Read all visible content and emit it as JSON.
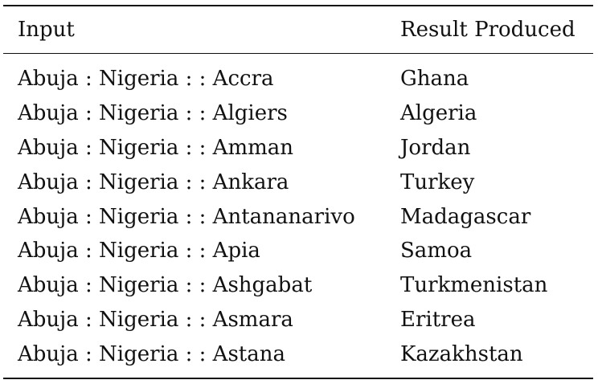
{
  "table": {
    "headers": {
      "input": "Input",
      "result": "Result Produced"
    },
    "rows": [
      {
        "input": "Abuja : Nigeria : : Accra",
        "result": "Ghana"
      },
      {
        "input": "Abuja : Nigeria : : Algiers",
        "result": "Algeria"
      },
      {
        "input": "Abuja : Nigeria : : Amman",
        "result": "Jordan"
      },
      {
        "input": "Abuja : Nigeria : : Ankara",
        "result": "Turkey"
      },
      {
        "input": "Abuja : Nigeria : : Antananarivo",
        "result": "Madagascar"
      },
      {
        "input": "Abuja : Nigeria : : Apia",
        "result": "Samoa"
      },
      {
        "input": "Abuja : Nigeria : : Ashgabat",
        "result": "Turkmenistan"
      },
      {
        "input": "Abuja : Nigeria : : Asmara",
        "result": "Eritrea"
      },
      {
        "input": "Abuja : Nigeria : : Astana",
        "result": "Kazakhstan"
      }
    ]
  }
}
